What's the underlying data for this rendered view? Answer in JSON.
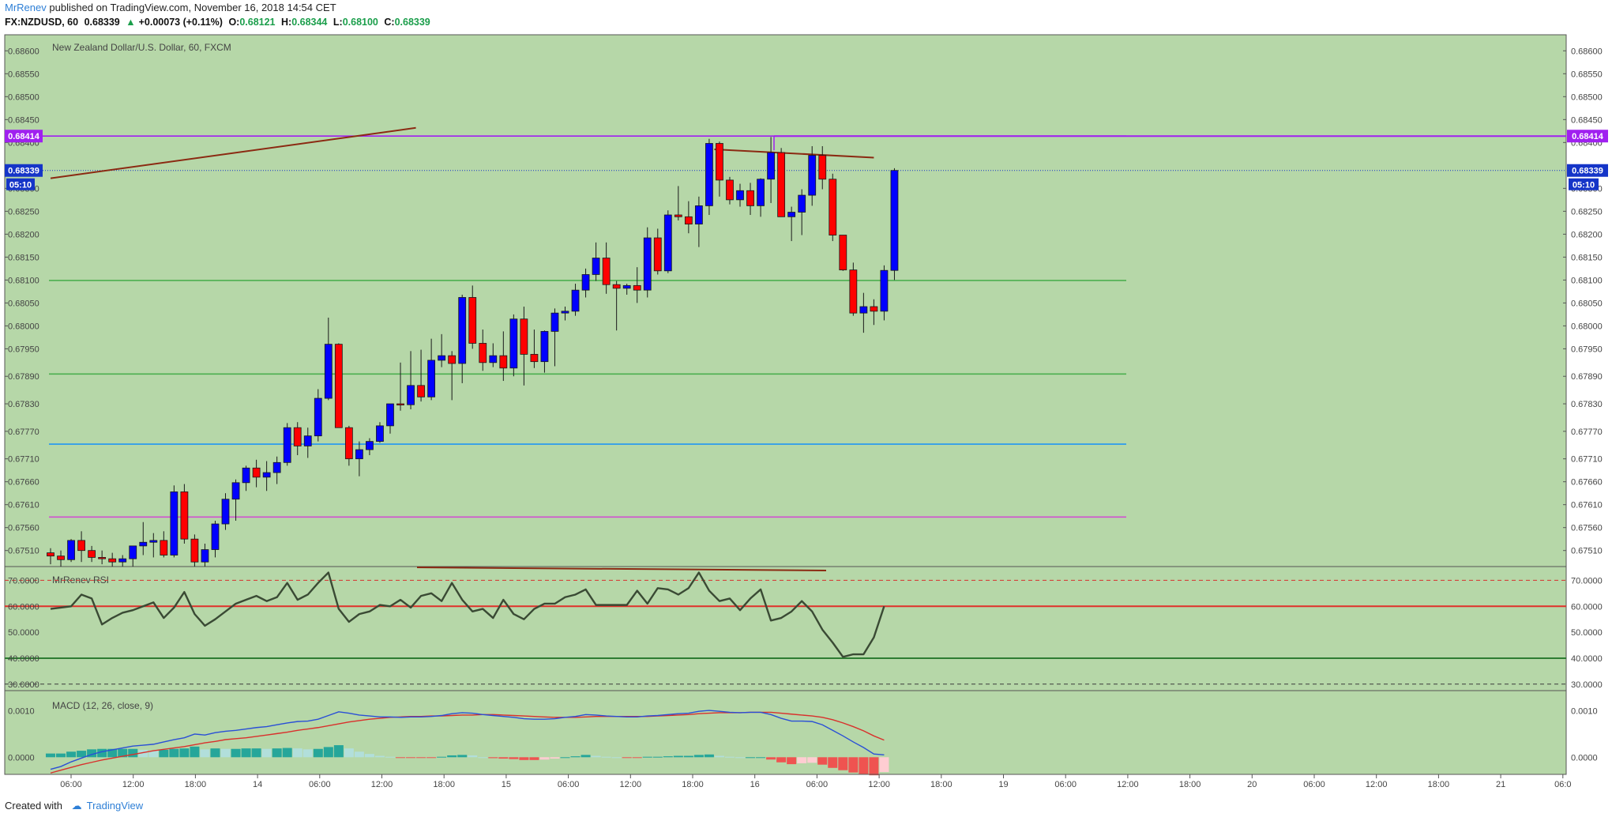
{
  "header": {
    "author": "MrRenev",
    "published_text": "published on TradingView.com, November 16, 2018 14:54 CET",
    "symbol": "FX:NZDUSD, 60",
    "price": "0.68339",
    "change": "+0.00073 (+0.11%)",
    "open_label": "O:",
    "open": "0.68121",
    "high_label": "H:",
    "high": "0.68344",
    "low_label": "L:",
    "low": "0.68100",
    "close_label": "C:",
    "close": "0.68339"
  },
  "footer": {
    "created_with": "Created with",
    "brand": "TradingView"
  },
  "colors": {
    "background": "#b6d7a8",
    "bull_candle": "#0000ff",
    "bear_candle": "#ff0000",
    "rsi_line": "#3a4a34",
    "macd_line": "#2a4fd6",
    "signal_line": "#d9302c",
    "hist_up": "#26a69a",
    "hist_up_light": "#b2dfdb",
    "hist_down": "#ef5350",
    "hist_down_light": "#ffcdd2",
    "level_purple": "#a020f0",
    "level_green": "#4caf50",
    "level_blue": "#2196f3",
    "level_magenta": "#d050d0",
    "trendline": "#8b2a12"
  },
  "chart_data": [
    {
      "type": "candlestick",
      "title": "New Zealand Dollar/U.S. Dollar, 60, FXCM",
      "yticks": [
        0.686,
        0.6855,
        0.685,
        0.6845,
        0.684,
        0.683,
        0.6825,
        0.682,
        0.6815,
        0.681,
        0.6805,
        0.68,
        0.6795,
        0.6789,
        0.6783,
        0.6777,
        0.6771,
        0.6766,
        0.6761,
        0.6756,
        0.6751
      ],
      "ylim": [
        0.67475,
        0.68635
      ],
      "xticks": [
        "06:00",
        "12:00",
        "18:00",
        "14",
        "06:00",
        "12:00",
        "18:00",
        "15",
        "06:00",
        "12:00",
        "18:00",
        "16",
        "06:00",
        "12:00",
        "18:00",
        "19",
        "06:00",
        "12:00",
        "18:00",
        "20",
        "06:00",
        "12:00",
        "18:00",
        "21",
        "06:0"
      ],
      "price_badges": [
        {
          "label": "0.68414",
          "value": 0.68414,
          "color": "#a020f0"
        },
        {
          "label": "0.68339",
          "value": 0.68339,
          "color": "#1535c8"
        }
      ],
      "countdown": "05:10",
      "horizontal_levels": [
        {
          "value": 0.68414,
          "color": "#a020f0"
        },
        {
          "value": 0.68099,
          "color": "#4caf50"
        },
        {
          "value": 0.67895,
          "color": "#4caf50"
        },
        {
          "value": 0.67742,
          "color": "#2196f3"
        },
        {
          "value": 0.67583,
          "color": "#d050d0"
        }
      ],
      "trendlines": [
        {
          "from": [
            0,
            0.68322
          ],
          "to": [
            35.5,
            0.68432
          ]
        },
        {
          "from": [
            64.5,
            0.68385
          ],
          "to": [
            80,
            0.68367
          ]
        }
      ],
      "candles": [
        {
          "o": 0.67505,
          "h": 0.67515,
          "l": 0.6748,
          "c": 0.67498
        },
        {
          "o": 0.67498,
          "h": 0.6751,
          "l": 0.67475,
          "c": 0.6749
        },
        {
          "o": 0.6749,
          "h": 0.67535,
          "l": 0.67485,
          "c": 0.67532
        },
        {
          "o": 0.67532,
          "h": 0.67552,
          "l": 0.67485,
          "c": 0.6751
        },
        {
          "o": 0.6751,
          "h": 0.6752,
          "l": 0.67485,
          "c": 0.67495
        },
        {
          "o": 0.67495,
          "h": 0.6751,
          "l": 0.6748,
          "c": 0.67492
        },
        {
          "o": 0.67492,
          "h": 0.67505,
          "l": 0.67475,
          "c": 0.67485
        },
        {
          "o": 0.67485,
          "h": 0.675,
          "l": 0.67475,
          "c": 0.67492
        },
        {
          "o": 0.67492,
          "h": 0.6752,
          "l": 0.67475,
          "c": 0.6752
        },
        {
          "o": 0.6752,
          "h": 0.67572,
          "l": 0.675,
          "c": 0.67528
        },
        {
          "o": 0.67528,
          "h": 0.67548,
          "l": 0.67495,
          "c": 0.67532
        },
        {
          "o": 0.67532,
          "h": 0.67552,
          "l": 0.67495,
          "c": 0.675
        },
        {
          "o": 0.675,
          "h": 0.67652,
          "l": 0.67495,
          "c": 0.67638
        },
        {
          "o": 0.67638,
          "h": 0.67655,
          "l": 0.67525,
          "c": 0.67535
        },
        {
          "o": 0.67535,
          "h": 0.67545,
          "l": 0.67475,
          "c": 0.67485
        },
        {
          "o": 0.67485,
          "h": 0.67525,
          "l": 0.67475,
          "c": 0.67512
        },
        {
          "o": 0.67512,
          "h": 0.67575,
          "l": 0.67495,
          "c": 0.67568
        },
        {
          "o": 0.67568,
          "h": 0.67635,
          "l": 0.67555,
          "c": 0.67622
        },
        {
          "o": 0.67622,
          "h": 0.67665,
          "l": 0.67575,
          "c": 0.67658
        },
        {
          "o": 0.67658,
          "h": 0.67695,
          "l": 0.6764,
          "c": 0.6769
        },
        {
          "o": 0.6769,
          "h": 0.67708,
          "l": 0.67648,
          "c": 0.6767
        },
        {
          "o": 0.6767,
          "h": 0.67705,
          "l": 0.6764,
          "c": 0.6768
        },
        {
          "o": 0.6768,
          "h": 0.67715,
          "l": 0.67655,
          "c": 0.67702
        },
        {
          "o": 0.67702,
          "h": 0.67788,
          "l": 0.67695,
          "c": 0.67778
        },
        {
          "o": 0.67778,
          "h": 0.6779,
          "l": 0.67718,
          "c": 0.67738
        },
        {
          "o": 0.67738,
          "h": 0.67778,
          "l": 0.67712,
          "c": 0.6776
        },
        {
          "o": 0.6776,
          "h": 0.67862,
          "l": 0.67748,
          "c": 0.67842
        },
        {
          "o": 0.67842,
          "h": 0.68018,
          "l": 0.67838,
          "c": 0.6796
        },
        {
          "o": 0.6796,
          "h": 0.67962,
          "l": 0.67778,
          "c": 0.67778
        },
        {
          "o": 0.67778,
          "h": 0.67782,
          "l": 0.67695,
          "c": 0.6771
        },
        {
          "o": 0.6771,
          "h": 0.67748,
          "l": 0.67672,
          "c": 0.6773
        },
        {
          "o": 0.6773,
          "h": 0.67755,
          "l": 0.67718,
          "c": 0.67748
        },
        {
          "o": 0.67748,
          "h": 0.6779,
          "l": 0.67745,
          "c": 0.67782
        },
        {
          "o": 0.67782,
          "h": 0.67822,
          "l": 0.67765,
          "c": 0.6783
        },
        {
          "o": 0.6783,
          "h": 0.6792,
          "l": 0.67815,
          "c": 0.67828
        },
        {
          "o": 0.67828,
          "h": 0.67945,
          "l": 0.67818,
          "c": 0.6787
        },
        {
          "o": 0.6787,
          "h": 0.67948,
          "l": 0.67835,
          "c": 0.67845
        },
        {
          "o": 0.67845,
          "h": 0.67972,
          "l": 0.67838,
          "c": 0.67925
        },
        {
          "o": 0.67925,
          "h": 0.67982,
          "l": 0.6791,
          "c": 0.67935
        },
        {
          "o": 0.67935,
          "h": 0.67945,
          "l": 0.67838,
          "c": 0.67918
        },
        {
          "o": 0.67918,
          "h": 0.68068,
          "l": 0.67875,
          "c": 0.68062
        },
        {
          "o": 0.68062,
          "h": 0.68088,
          "l": 0.6795,
          "c": 0.67962
        },
        {
          "o": 0.67962,
          "h": 0.67992,
          "l": 0.67902,
          "c": 0.6792
        },
        {
          "o": 0.6792,
          "h": 0.67962,
          "l": 0.6791,
          "c": 0.67935
        },
        {
          "o": 0.67935,
          "h": 0.67988,
          "l": 0.6788,
          "c": 0.67908
        },
        {
          "o": 0.67908,
          "h": 0.68025,
          "l": 0.6789,
          "c": 0.68015
        },
        {
          "o": 0.68015,
          "h": 0.68042,
          "l": 0.6787,
          "c": 0.67938
        },
        {
          "o": 0.67938,
          "h": 0.67992,
          "l": 0.67908,
          "c": 0.67922
        },
        {
          "o": 0.67922,
          "h": 0.6799,
          "l": 0.67898,
          "c": 0.67988
        },
        {
          "o": 0.67988,
          "h": 0.68038,
          "l": 0.67912,
          "c": 0.68028
        },
        {
          "o": 0.68028,
          "h": 0.68042,
          "l": 0.68012,
          "c": 0.68032
        },
        {
          "o": 0.68032,
          "h": 0.68092,
          "l": 0.68022,
          "c": 0.68078
        },
        {
          "o": 0.68078,
          "h": 0.68125,
          "l": 0.68062,
          "c": 0.68112
        },
        {
          "o": 0.68112,
          "h": 0.68182,
          "l": 0.68098,
          "c": 0.68148
        },
        {
          "o": 0.68148,
          "h": 0.68182,
          "l": 0.6807,
          "c": 0.6809
        },
        {
          "o": 0.6809,
          "h": 0.68098,
          "l": 0.6799,
          "c": 0.68082
        },
        {
          "o": 0.68082,
          "h": 0.68092,
          "l": 0.68068,
          "c": 0.68088
        },
        {
          "o": 0.68088,
          "h": 0.68128,
          "l": 0.6805,
          "c": 0.68078
        },
        {
          "o": 0.68078,
          "h": 0.68215,
          "l": 0.68062,
          "c": 0.68192
        },
        {
          "o": 0.68192,
          "h": 0.68212,
          "l": 0.68112,
          "c": 0.6812
        },
        {
          "o": 0.6812,
          "h": 0.68252,
          "l": 0.68115,
          "c": 0.68242
        },
        {
          "o": 0.68242,
          "h": 0.68305,
          "l": 0.6823,
          "c": 0.68238
        },
        {
          "o": 0.68238,
          "h": 0.68272,
          "l": 0.68202,
          "c": 0.68222
        },
        {
          "o": 0.68222,
          "h": 0.68282,
          "l": 0.68172,
          "c": 0.68262
        },
        {
          "o": 0.68262,
          "h": 0.68408,
          "l": 0.68242,
          "c": 0.68398
        },
        {
          "o": 0.68398,
          "h": 0.68402,
          "l": 0.68282,
          "c": 0.68318
        },
        {
          "o": 0.68318,
          "h": 0.68325,
          "l": 0.68265,
          "c": 0.68275
        },
        {
          "o": 0.68275,
          "h": 0.6831,
          "l": 0.6826,
          "c": 0.68295
        },
        {
          "o": 0.68295,
          "h": 0.68312,
          "l": 0.68242,
          "c": 0.68262
        },
        {
          "o": 0.68262,
          "h": 0.68322,
          "l": 0.68238,
          "c": 0.6832
        },
        {
          "o": 0.6832,
          "h": 0.68412,
          "l": 0.68268,
          "c": 0.68378
        },
        {
          "o": 0.68378,
          "h": 0.68388,
          "l": 0.68238,
          "c": 0.68238
        },
        {
          "o": 0.68238,
          "h": 0.6826,
          "l": 0.68185,
          "c": 0.68248
        },
        {
          "o": 0.68248,
          "h": 0.68298,
          "l": 0.68198,
          "c": 0.68285
        },
        {
          "o": 0.68285,
          "h": 0.68392,
          "l": 0.68262,
          "c": 0.68372
        },
        {
          "o": 0.68372,
          "h": 0.68392,
          "l": 0.68298,
          "c": 0.6832
        },
        {
          "o": 0.6832,
          "h": 0.68332,
          "l": 0.68185,
          "c": 0.68198
        },
        {
          "o": 0.68198,
          "h": 0.68198,
          "l": 0.6812,
          "c": 0.68122
        },
        {
          "o": 0.68122,
          "h": 0.68138,
          "l": 0.68022,
          "c": 0.68028
        },
        {
          "o": 0.68028,
          "h": 0.68072,
          "l": 0.67985,
          "c": 0.68042
        },
        {
          "o": 0.68042,
          "h": 0.68058,
          "l": 0.68002,
          "c": 0.68032
        },
        {
          "o": 0.68032,
          "h": 0.68132,
          "l": 0.68012,
          "c": 0.68121
        },
        {
          "o": 0.68121,
          "h": 0.68344,
          "l": 0.681,
          "c": 0.68339
        }
      ]
    },
    {
      "type": "line",
      "title": "MrRenev RSI",
      "yticks": [
        70,
        60,
        50,
        40,
        30
      ],
      "ytick_labels": [
        "70.0000",
        "60.0000",
        "50.0000",
        "40.0000",
        "30.0000"
      ],
      "ylim": [
        27.5,
        75
      ],
      "levels": [
        {
          "value": 70,
          "color": "#d9302c",
          "style": "dashed"
        },
        {
          "value": 60,
          "color": "#e0302a",
          "style": "solid"
        },
        {
          "value": 40,
          "color": "#2e7d32",
          "style": "solid"
        },
        {
          "value": 30,
          "color": "#3a3a3a",
          "style": "dashed"
        }
      ],
      "values": [
        59,
        59.5,
        60,
        64.5,
        63,
        53,
        55.5,
        57.5,
        58.5,
        60,
        61.5,
        55.5,
        59.5,
        65.5,
        57,
        52.5,
        55,
        58,
        61,
        62.5,
        64,
        62,
        63.5,
        69,
        62.5,
        64.5,
        69,
        73,
        59,
        54,
        57,
        58,
        60.5,
        60,
        62.5,
        59.5,
        64,
        65,
        62,
        69,
        62.5,
        58,
        59,
        55.5,
        62.5,
        57,
        55,
        59,
        61,
        61,
        63.5,
        64.5,
        66.5,
        60.5,
        60.5,
        60.5,
        60.5,
        66,
        61,
        67,
        66.5,
        64.5,
        67,
        73,
        66,
        62,
        63,
        58.5,
        63,
        66.5,
        54.5,
        55.5,
        58,
        62,
        58,
        51,
        46,
        40.5,
        41.5,
        41.5,
        48,
        60
      ]
    },
    {
      "type": "line",
      "title": "MACD (12, 26, close, 9)",
      "yticks": [
        0.001,
        0
      ],
      "ytick_labels": [
        "0.0010",
        "0.0000"
      ],
      "ylim": [
        -0.00037,
        0.00142
      ],
      "series": [
        {
          "name": "MACD",
          "values": [
            -0.00026,
            -0.0002,
            -0.0001,
            -2e-05,
            6e-05,
            0.00012,
            0.00016,
            0.0002,
            0.00024,
            0.00026,
            0.00028,
            0.00033,
            0.00038,
            0.00042,
            0.0005,
            0.00048,
            0.00053,
            0.00056,
            0.00058,
            0.00061,
            0.00064,
            0.00066,
            0.0007,
            0.00074,
            0.00077,
            0.00078,
            0.00082,
            0.0009,
            0.00098,
            0.00095,
            0.00091,
            0.00089,
            0.00087,
            0.00087,
            0.00086,
            0.00087,
            0.00087,
            0.00088,
            0.0009,
            0.00094,
            0.00096,
            0.00095,
            0.00092,
            0.0009,
            0.00088,
            0.00086,
            0.00083,
            0.00082,
            0.00082,
            0.00083,
            0.00086,
            0.00088,
            0.00092,
            0.00091,
            0.00089,
            0.00088,
            0.00087,
            0.00087,
            0.00089,
            0.0009,
            0.00092,
            0.00094,
            0.00095,
            0.00099,
            0.00101,
            0.00099,
            0.00097,
            0.00096,
            0.00097,
            0.00097,
            0.00092,
            0.00084,
            0.00078,
            0.00078,
            0.00077,
            0.0007,
            0.00058,
            0.00046,
            0.00033,
            0.00021,
            7e-05,
            5e-05
          ]
        },
        {
          "name": "Signal",
          "values": [
            -0.00034,
            -0.00028,
            -0.00022,
            -0.00016,
            -0.00011,
            -6e-05,
            -2e-05,
            2e-05,
            6e-05,
            0.0001,
            0.00014,
            0.00017,
            0.0002,
            0.00023,
            0.00027,
            0.00031,
            0.00034,
            0.00038,
            0.0004,
            0.00042,
            0.00045,
            0.00048,
            0.00051,
            0.00054,
            0.00058,
            0.00061,
            0.00064,
            0.00068,
            0.00072,
            0.00076,
            0.00079,
            0.00082,
            0.00084,
            0.00086,
            0.00087,
            0.00088,
            0.00088,
            0.00089,
            0.00089,
            0.0009,
            0.00091,
            0.00091,
            0.00092,
            0.00092,
            0.00091,
            0.0009,
            0.00089,
            0.00088,
            0.00087,
            0.00086,
            0.00086,
            0.00086,
            0.00087,
            0.00088,
            0.00088,
            0.00088,
            0.00088,
            0.00088,
            0.00088,
            0.00089,
            0.0009,
            0.00091,
            0.00092,
            0.00094,
            0.00095,
            0.00096,
            0.00096,
            0.00096,
            0.00097,
            0.00097,
            0.00097,
            0.00095,
            0.00093,
            0.00091,
            0.00089,
            0.00086,
            0.00081,
            0.00074,
            0.00066,
            0.00057,
            0.00046,
            0.00037
          ]
        },
        {
          "name": "Histogram",
          "values": [
            8e-05,
            8e-05,
            0.00012,
            0.00014,
            0.00017,
            0.00018,
            0.00018,
            0.00018,
            0.00018,
            0.00016,
            0.00014,
            0.00016,
            0.00018,
            0.00019,
            0.00023,
            0.00017,
            0.00019,
            0.00018,
            0.00018,
            0.00019,
            0.00019,
            0.00018,
            0.00019,
            0.0002,
            0.00019,
            0.00017,
            0.00018,
            0.00022,
            0.00026,
            0.00019,
            0.00012,
            7e-05,
            3e-05,
            1e-05,
            -1e-05,
            -1e-05,
            -1e-05,
            -1e-05,
            1e-05,
            4e-05,
            5e-05,
            4e-05,
            0,
            -2e-05,
            -3e-05,
            -4e-05,
            -6e-05,
            -6e-05,
            -5e-05,
            -3e-05,
            0,
            2e-05,
            5e-05,
            3e-05,
            1e-05,
            0,
            -1e-05,
            -1e-05,
            1e-05,
            1e-05,
            2e-05,
            3e-05,
            3e-05,
            5e-05,
            6e-05,
            3e-05,
            1e-05,
            0,
            0,
            0,
            -5e-05,
            -0.00011,
            -0.00015,
            -0.00013,
            -0.00012,
            -0.00016,
            -0.00023,
            -0.00028,
            -0.00033,
            -0.00036,
            -0.00039,
            -0.00032
          ]
        }
      ]
    }
  ]
}
